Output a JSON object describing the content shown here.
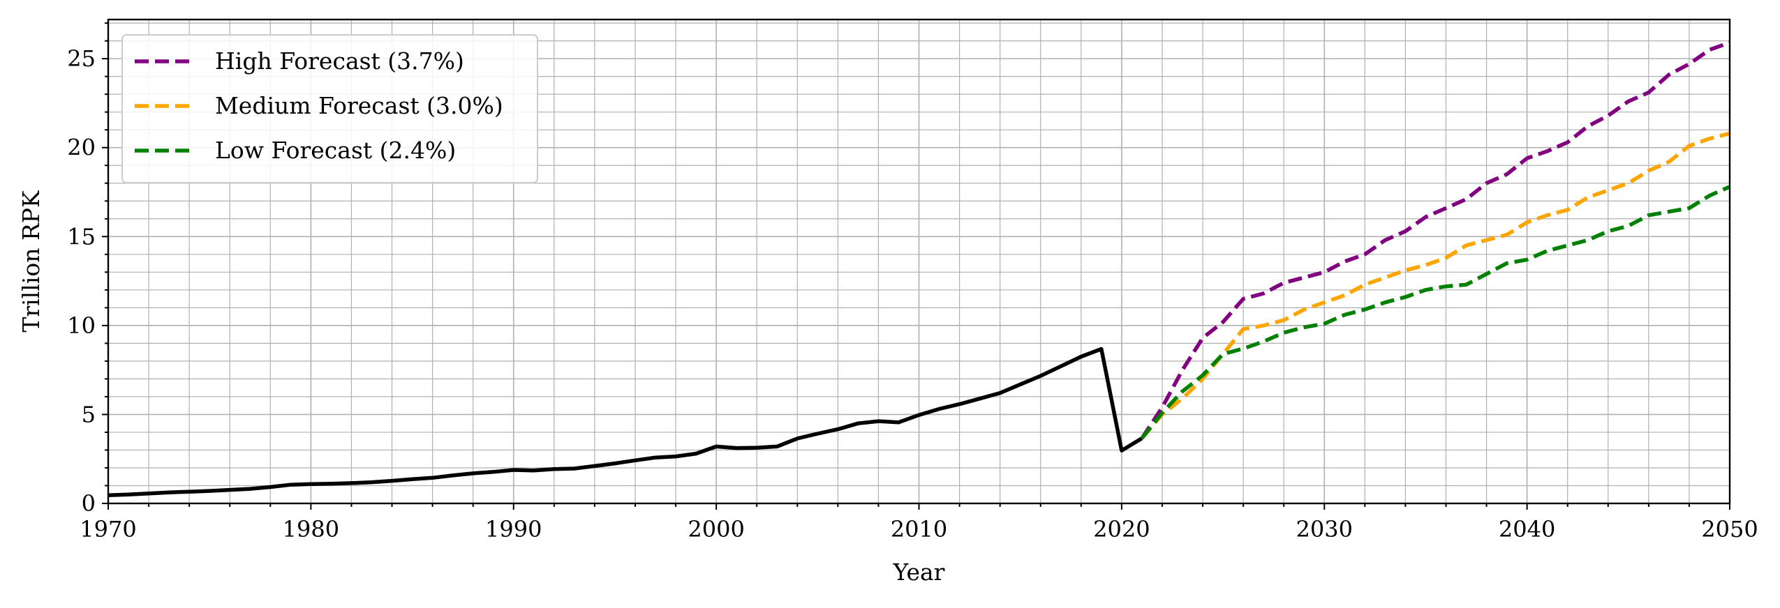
{
  "chart_data": {
    "type": "line",
    "title": "",
    "xlabel": "Year",
    "ylabel": "Trillion RPK",
    "xlim": [
      1970,
      2050
    ],
    "ylim": [
      0,
      27.2
    ],
    "x_ticks": [
      1970,
      1980,
      1990,
      2000,
      2010,
      2020,
      2030,
      2040,
      2050
    ],
    "y_ticks": [
      0,
      5,
      10,
      15,
      20,
      25
    ],
    "x_minor_step": 2,
    "y_minor_step": 1,
    "grid": "major and minor, both axes",
    "legend_position": "top-left",
    "series": [
      {
        "name": "",
        "color": "#000000",
        "style": "solid",
        "x": [
          1970,
          1971,
          1972,
          1973,
          1974,
          1975,
          1976,
          1977,
          1978,
          1979,
          1980,
          1981,
          1982,
          1983,
          1984,
          1985,
          1986,
          1987,
          1988,
          1989,
          1990,
          1991,
          1992,
          1993,
          1994,
          1995,
          1996,
          1997,
          1998,
          1999,
          2000,
          2001,
          2002,
          2003,
          2004,
          2005,
          2006,
          2007,
          2008,
          2009,
          2010,
          2011,
          2012,
          2013,
          2014,
          2015,
          2016,
          2017,
          2018,
          2019,
          2020,
          2021
        ],
        "y": [
          0.46,
          0.5,
          0.56,
          0.62,
          0.66,
          0.7,
          0.76,
          0.82,
          0.92,
          1.05,
          1.09,
          1.11,
          1.14,
          1.19,
          1.27,
          1.36,
          1.44,
          1.57,
          1.69,
          1.77,
          1.88,
          1.85,
          1.93,
          1.96,
          2.1,
          2.25,
          2.42,
          2.58,
          2.64,
          2.8,
          3.2,
          3.11,
          3.13,
          3.2,
          3.65,
          3.92,
          4.17,
          4.5,
          4.62,
          4.56,
          4.97,
          5.31,
          5.58,
          5.89,
          6.21,
          6.69,
          7.17,
          7.71,
          8.25,
          8.68,
          2.97,
          3.66
        ]
      },
      {
        "name": "High Forecast (3.7%)",
        "color": "#800080",
        "style": "dashed",
        "x": [
          2021,
          2022,
          2023,
          2024,
          2025,
          2026,
          2027,
          2028,
          2029,
          2030,
          2031,
          2032,
          2033,
          2034,
          2035,
          2036,
          2037,
          2038,
          2039,
          2040,
          2041,
          2042,
          2043,
          2044,
          2045,
          2046,
          2047,
          2048,
          2049,
          2050
        ],
        "y": [
          3.66,
          5.4,
          7.5,
          9.3,
          10.2,
          11.5,
          11.8,
          12.4,
          12.7,
          13.0,
          13.6,
          14.0,
          14.8,
          15.3,
          16.1,
          16.6,
          17.1,
          18.0,
          18.5,
          19.4,
          19.8,
          20.3,
          21.2,
          21.8,
          22.6,
          23.1,
          24.1,
          24.7,
          25.5,
          25.9
        ]
      },
      {
        "name": "Medium Forecast (3.0%)",
        "color": "#FFA500",
        "style": "dashed",
        "x": [
          2021,
          2022,
          2023,
          2024,
          2025,
          2026,
          2027,
          2028,
          2029,
          2030,
          2031,
          2032,
          2033,
          2034,
          2035,
          2036,
          2037,
          2038,
          2039,
          2040,
          2041,
          2042,
          2043,
          2044,
          2045,
          2046,
          2047,
          2048,
          2049,
          2050
        ],
        "y": [
          3.66,
          5.0,
          5.9,
          7.0,
          8.4,
          9.8,
          10.0,
          10.3,
          10.9,
          11.3,
          11.7,
          12.3,
          12.7,
          13.1,
          13.4,
          13.8,
          14.5,
          14.8,
          15.1,
          15.8,
          16.2,
          16.5,
          17.2,
          17.6,
          18.0,
          18.7,
          19.2,
          20.1,
          20.5,
          20.8
        ]
      },
      {
        "name": "Low Forecast (2.4%)",
        "color": "#008000",
        "style": "dashed",
        "x": [
          2021,
          2022,
          2023,
          2024,
          2025,
          2026,
          2027,
          2028,
          2029,
          2030,
          2031,
          2032,
          2033,
          2034,
          2035,
          2036,
          2037,
          2038,
          2039,
          2040,
          2041,
          2042,
          2043,
          2044,
          2045,
          2046,
          2047,
          2048,
          2049,
          2050
        ],
        "y": [
          3.66,
          5.1,
          6.3,
          7.2,
          8.4,
          8.7,
          9.1,
          9.6,
          9.9,
          10.1,
          10.6,
          10.9,
          11.3,
          11.6,
          12.0,
          12.2,
          12.3,
          12.9,
          13.5,
          13.7,
          14.2,
          14.5,
          14.8,
          15.3,
          15.6,
          16.2,
          16.4,
          16.6,
          17.3,
          17.8
        ]
      }
    ]
  }
}
